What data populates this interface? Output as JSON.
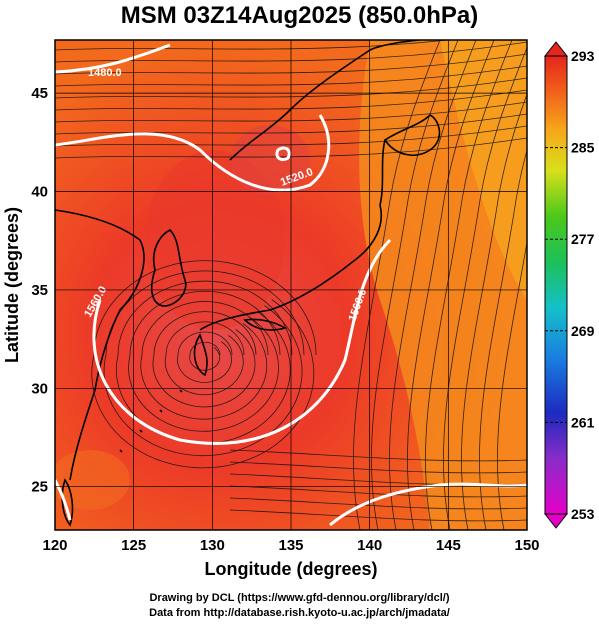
{
  "title": "MSM 03Z14Aug2025 (850.0hPa)",
  "xaxis": {
    "label": "Longitude (degrees)",
    "ticks": [
      "120",
      "125",
      "130",
      "135",
      "140",
      "145",
      "150"
    ]
  },
  "yaxis": {
    "label": "Latitude  (degrees)",
    "ticks": [
      "25",
      "30",
      "35",
      "40",
      "45"
    ]
  },
  "colorbar": {
    "ticks": [
      "293",
      "285",
      "277",
      "269",
      "261",
      "253"
    ],
    "range": [
      253,
      293
    ]
  },
  "contours": [
    {
      "label": "1480.0"
    },
    {
      "label": "1520.0"
    },
    {
      "label": "1560.0"
    },
    {
      "label": "1560.0"
    }
  ],
  "credits": {
    "line1": "Drawing by DCL (https://www.gfd-dennou.org/library/dcl/)",
    "line2": "Data from http://database.rish.kyoto-u.ac.jp/arch/jmadata/"
  },
  "colors": {
    "warm": "#e8331f",
    "orange": "#f47a16",
    "contour": "#ffffff",
    "frame": "#000000"
  }
}
